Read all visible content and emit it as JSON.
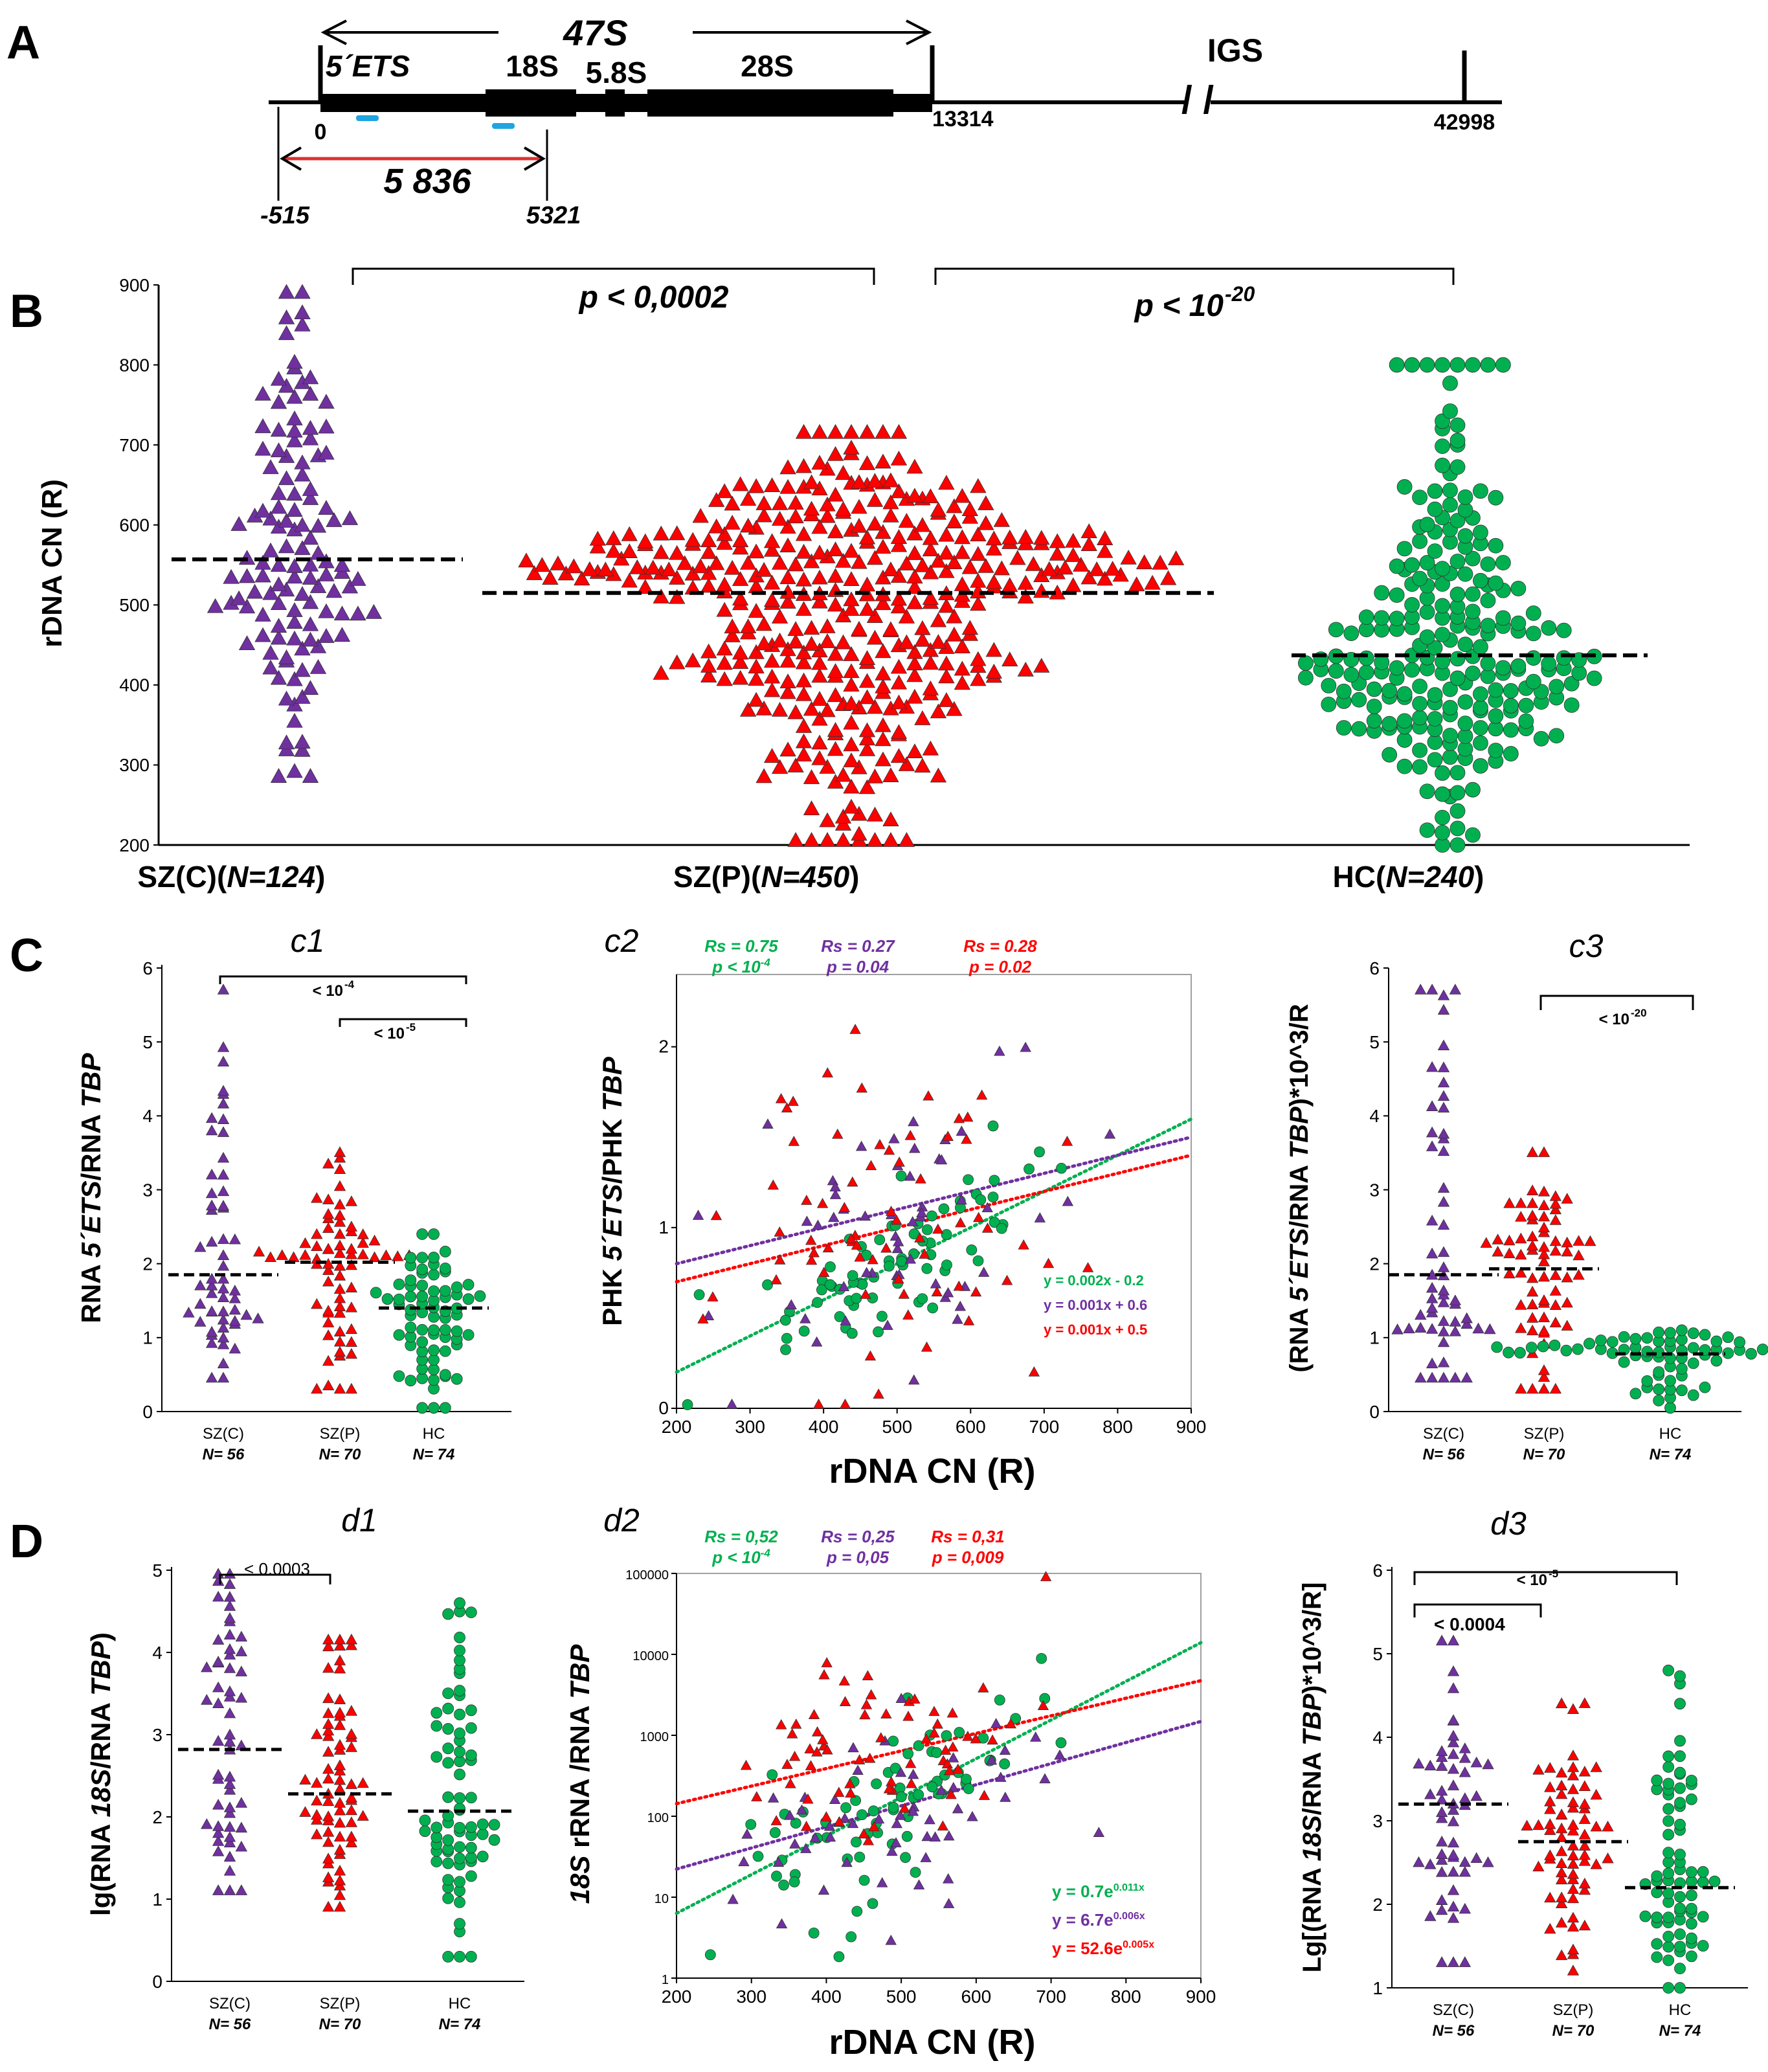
{
  "colors": {
    "szc": "#7030a0",
    "szp": "#ff0000",
    "hc": "#00b050",
    "probe": "#1fa5e0",
    "bracket_red": "#e03030",
    "axis": "#000000"
  },
  "panelA": {
    "label": "A",
    "gene_47s": "47S",
    "ets": "5´ETS",
    "s18": "18S",
    "s58": "5.8S",
    "s28": "28S",
    "igs": "IGS",
    "pos0": "0",
    "pos13314": "13314",
    "pos42998": "42998",
    "posm515": "-515",
    "pos5321": "5321",
    "amplicon": "5 836",
    "break_mark": "/ /"
  },
  "panelB": {
    "label": "B",
    "p1": "p < 0,0002",
    "p2_base": "p < 10",
    "p2_exp": "-20"
  },
  "panelC": {
    "label": "C",
    "c1_title": "c1",
    "c2_title": "c2",
    "c3_title": "c3",
    "c1_br1": "< 10",
    "c1_br1_exp": "-4",
    "c1_br2": "< 10",
    "c1_br2_exp": "-5",
    "c3_br": "< 10",
    "c3_br_exp": "-20",
    "rs": [
      {
        "label": "Rs = 0.75",
        "p": "p < 10",
        "pexp": "-4",
        "color": "#00b050"
      },
      {
        "label": "Rs = 0.27",
        "p": "p = 0.04",
        "pexp": "",
        "color": "#7030a0"
      },
      {
        "label": "Rs = 0.28",
        "p": "p = 0.02",
        "pexp": "",
        "color": "#ff0000"
      }
    ],
    "eqs": [
      {
        "text": "y = 0.002x - 0.2",
        "color": "#00b050"
      },
      {
        "text": "y = 0.001x + 0.6",
        "color": "#7030a0"
      },
      {
        "text": "y = 0.001x + 0.5",
        "color": "#ff0000"
      }
    ]
  },
  "panelD": {
    "label": "D",
    "d1_title": "d1",
    "d2_title": "d2",
    "d3_title": "d3",
    "d1_br": "< 0.0003",
    "d3_br1": "< 0.0004",
    "d3_br2": "< 10",
    "d3_br2_exp": "-5",
    "rs": [
      {
        "label": "Rs = 0,52",
        "p": "p < 10",
        "pexp": "-4",
        "color": "#00b050"
      },
      {
        "label": "Rs = 0,25",
        "p": "p = 0,05",
        "pexp": "",
        "color": "#7030a0"
      },
      {
        "label": "Rs = 0,31",
        "p": "p = 0,009",
        "pexp": "",
        "color": "#ff0000"
      }
    ],
    "eqs": [
      {
        "base": "y = 0.7e",
        "exp": "0.011x",
        "color": "#00b050"
      },
      {
        "base": "y = 6.7e",
        "exp": "0.006x",
        "color": "#7030a0"
      },
      {
        "base": "y = 52.6e",
        "exp": "0.005x",
        "color": "#ff0000"
      }
    ]
  },
  "chart_data": [
    {
      "id": "B",
      "type": "scatter",
      "title": "",
      "ylabel": "rDNA CN  (R)",
      "ylim": [
        200,
        900
      ],
      "yticks": [
        200,
        300,
        400,
        500,
        600,
        700,
        800,
        900
      ],
      "groups": [
        {
          "name": "SZ(C)",
          "n_label": "N=124",
          "n": 124,
          "mean": 557,
          "min": 285,
          "max": 890,
          "marker": "triangle",
          "color": "#7030a0"
        },
        {
          "name": "SZ(P)",
          "n_label": "N=450",
          "n": 450,
          "mean": 515,
          "min": 205,
          "max": 715,
          "marker": "triangle",
          "color": "#ff0000"
        },
        {
          "name": "HC",
          "n_label": "N=240",
          "n": 240,
          "mean": 437,
          "min": 200,
          "max": 800,
          "marker": "circle",
          "color": "#00b050"
        }
      ]
    },
    {
      "id": "c1",
      "type": "scatter",
      "ylabel_pre": "RNA ",
      "ylabel_it": "5´ETS",
      "ylabel_mid": "/RNA ",
      "ylabel_it2": "TBP",
      "ylim": [
        0,
        6
      ],
      "yticks": [
        0,
        1,
        2,
        3,
        4,
        5,
        6
      ],
      "groups": [
        {
          "name": "SZ(C)",
          "n_label": "N= 56",
          "n": 56,
          "mean": 1.85,
          "min": 0.45,
          "max": 5.7
        },
        {
          "name": "SZ(P)",
          "n_label": "N= 70",
          "n": 70,
          "mean": 2.02,
          "min": 0.3,
          "max": 3.5
        },
        {
          "name": "HC",
          "n_label": "N= 74",
          "n": 74,
          "mean": 1.4,
          "min": 0.05,
          "max": 2.4
        }
      ]
    },
    {
      "id": "c2",
      "type": "scatter",
      "xlabel": "rDNA CN  (R)",
      "ylabel_pre": "PHK ",
      "ylabel_it": "5´ETS",
      "ylabel_mid": "/PHK ",
      "ylabel_it2": "TBP",
      "xlim": [
        200,
        900
      ],
      "ylim": [
        0,
        2.4
      ],
      "xticks": [
        200,
        300,
        400,
        500,
        600,
        700,
        800,
        900
      ],
      "yticks": [
        0,
        1,
        2
      ],
      "series": [
        {
          "name": "HC",
          "slope": 0.002,
          "intercept": -0.2
        },
        {
          "name": "SZ(C)",
          "slope": 0.001,
          "intercept": 0.6
        },
        {
          "name": "SZ(P)",
          "slope": 0.001,
          "intercept": 0.5
        }
      ]
    },
    {
      "id": "c3",
      "type": "scatter",
      "ylabel_pre": "(RNA ",
      "ylabel_it": "5´ETS",
      "ylabel_mid": "/RNA ",
      "ylabel_it2": "TBP",
      "ylabel_post": ")*10^3/R",
      "ylim": [
        0,
        6
      ],
      "yticks": [
        0,
        1,
        2,
        3,
        4,
        5,
        6
      ],
      "groups": [
        {
          "name": "SZ(C)",
          "n_label": "N= 56",
          "n": 56,
          "mean": 1.85,
          "min": 0.45,
          "max": 5.7
        },
        {
          "name": "SZ(P)",
          "n_label": "N= 70",
          "n": 70,
          "mean": 1.93,
          "min": 0.3,
          "max": 3.5
        },
        {
          "name": "HC",
          "n_label": "N= 74",
          "n": 74,
          "mean": 0.78,
          "min": 0.05,
          "max": 1.1
        }
      ]
    },
    {
      "id": "d1",
      "type": "scatter",
      "ylabel_pre": "lg(RNA ",
      "ylabel_it": "18S",
      "ylabel_mid": "/RNA ",
      "ylabel_it2": "TBP",
      "ylabel_post": ")",
      "ylim": [
        0,
        5
      ],
      "yticks": [
        0,
        1,
        2,
        3,
        4,
        5
      ],
      "groups": [
        {
          "name": "SZ(C)",
          "n_label": "N= 56",
          "n": 56,
          "mean": 2.82,
          "min": 1.1,
          "max": 4.95
        },
        {
          "name": "SZ(P)",
          "n_label": "N= 70",
          "n": 70,
          "mean": 2.28,
          "min": 0.9,
          "max": 4.15
        },
        {
          "name": "HC",
          "n_label": "N= 74",
          "n": 74,
          "mean": 2.07,
          "min": 0.3,
          "max": 4.6
        }
      ]
    },
    {
      "id": "d2",
      "type": "scatter",
      "xlabel": "rDNA CN  (R)",
      "ylabel_pre": "",
      "ylabel_it": "18S",
      "ylabel_mid": " rRNA /RNA ",
      "ylabel_it2": "TBP",
      "xlim": [
        200,
        900
      ],
      "yscale": "log",
      "ylim": [
        1,
        100000
      ],
      "xticks": [
        200,
        300,
        400,
        500,
        600,
        700,
        800,
        900
      ],
      "yticks": [
        1,
        10,
        100,
        1000,
        10000,
        100000
      ],
      "series": [
        {
          "name": "HC",
          "a": 0.7,
          "b": 0.011
        },
        {
          "name": "SZ(C)",
          "a": 6.7,
          "b": 0.006
        },
        {
          "name": "SZ(P)",
          "a": 52.6,
          "b": 0.005
        }
      ]
    },
    {
      "id": "d3",
      "type": "scatter",
      "ylabel_pre": "Lg[(RNA ",
      "ylabel_it": "18S",
      "ylabel_mid": "/RNA ",
      "ylabel_it2": "TBP",
      "ylabel_post": ")*10^3/R]",
      "ylim": [
        1,
        6
      ],
      "yticks": [
        1,
        2,
        3,
        4,
        5,
        6
      ],
      "groups": [
        {
          "name": "SZ(C)",
          "n_label": "N= 56",
          "n": 56,
          "mean": 3.2,
          "min": 1.3,
          "max": 5.15
        },
        {
          "name": "SZ(P)",
          "n_label": "N= 70",
          "n": 70,
          "mean": 2.75,
          "min": 1.2,
          "max": 4.4
        },
        {
          "name": "HC",
          "n_label": "N= 74",
          "n": 74,
          "mean": 2.2,
          "min": 1.0,
          "max": 4.8
        }
      ]
    }
  ]
}
